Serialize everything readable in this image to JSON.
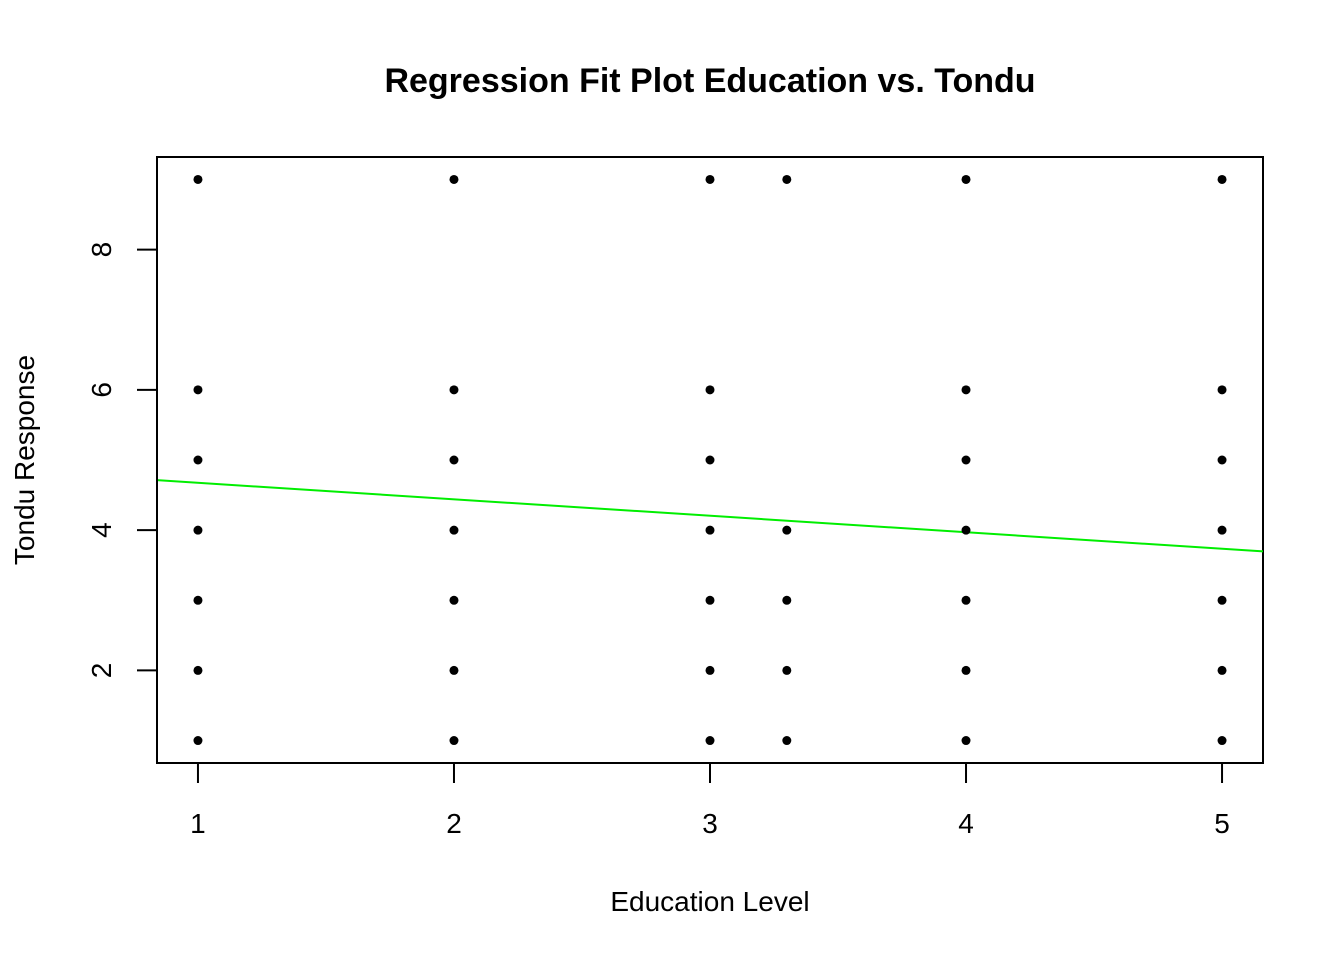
{
  "chart_data": {
    "type": "scatter",
    "title": "Regression Fit Plot Education vs. Tondu",
    "xlabel": "Education Level",
    "ylabel": "Tondu Response",
    "xlim": [
      0.84,
      5.16
    ],
    "ylim": [
      0.68,
      9.32
    ],
    "x_ticks": [
      1,
      2,
      3,
      4,
      5
    ],
    "y_ticks": [
      2,
      4,
      6,
      8
    ],
    "grid": false,
    "point_color": "#000000",
    "fit_color": "#00ee00",
    "points": [
      {
        "x": 1,
        "y": 9
      },
      {
        "x": 1,
        "y": 6
      },
      {
        "x": 1,
        "y": 5
      },
      {
        "x": 1,
        "y": 4
      },
      {
        "x": 1,
        "y": 3
      },
      {
        "x": 1,
        "y": 2
      },
      {
        "x": 1,
        "y": 1
      },
      {
        "x": 2,
        "y": 9
      },
      {
        "x": 2,
        "y": 6
      },
      {
        "x": 2,
        "y": 5
      },
      {
        "x": 2,
        "y": 4
      },
      {
        "x": 2,
        "y": 3
      },
      {
        "x": 2,
        "y": 2
      },
      {
        "x": 2,
        "y": 1
      },
      {
        "x": 3,
        "y": 9
      },
      {
        "x": 3,
        "y": 6
      },
      {
        "x": 3,
        "y": 5
      },
      {
        "x": 3,
        "y": 4
      },
      {
        "x": 3,
        "y": 3
      },
      {
        "x": 3,
        "y": 2
      },
      {
        "x": 3,
        "y": 1
      },
      {
        "x": 3.3,
        "y": 9
      },
      {
        "x": 3.3,
        "y": 4
      },
      {
        "x": 3.3,
        "y": 3
      },
      {
        "x": 3.3,
        "y": 2
      },
      {
        "x": 3.3,
        "y": 1
      },
      {
        "x": 4,
        "y": 9
      },
      {
        "x": 4,
        "y": 6
      },
      {
        "x": 4,
        "y": 5
      },
      {
        "x": 4,
        "y": 4
      },
      {
        "x": 4,
        "y": 3
      },
      {
        "x": 4,
        "y": 2
      },
      {
        "x": 4,
        "y": 1
      },
      {
        "x": 5,
        "y": 9
      },
      {
        "x": 5,
        "y": 6
      },
      {
        "x": 5,
        "y": 5
      },
      {
        "x": 5,
        "y": 4
      },
      {
        "x": 5,
        "y": 3
      },
      {
        "x": 5,
        "y": 2
      },
      {
        "x": 5,
        "y": 1
      }
    ],
    "fit_line": {
      "intercept": 4.91,
      "slope": -0.235
    }
  }
}
